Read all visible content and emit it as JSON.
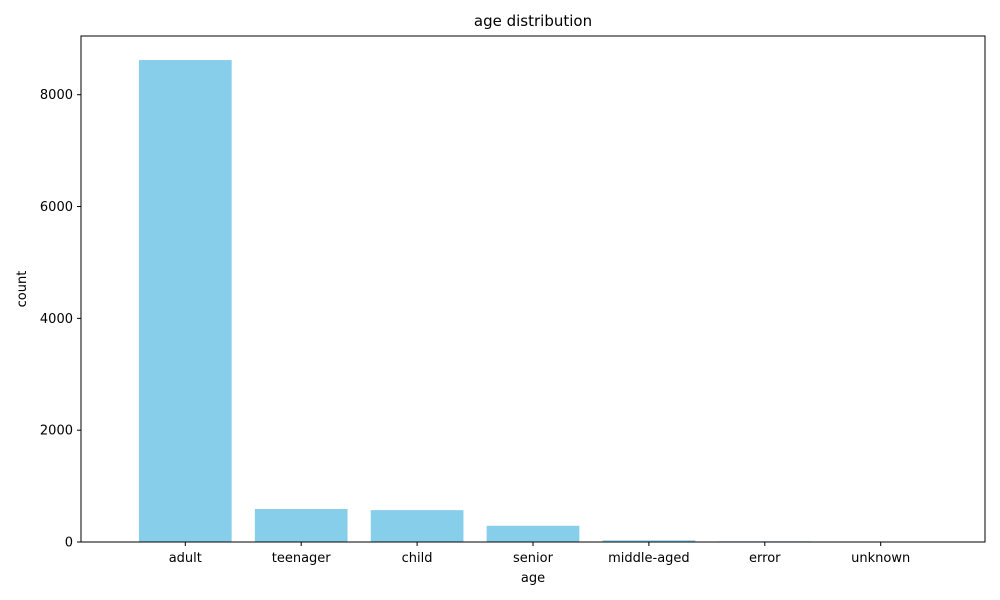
{
  "chart_data": {
    "type": "bar",
    "title": "age distribution",
    "xlabel": "age",
    "ylabel": "count",
    "categories": [
      "adult",
      "teenager",
      "child",
      "senior",
      "middle-aged",
      "error",
      "unknown"
    ],
    "values": [
      8620,
      590,
      570,
      290,
      30,
      12,
      2
    ],
    "ylim": [
      0,
      9050
    ],
    "yticks": [
      0,
      2000,
      4000,
      6000,
      8000
    ],
    "yticks_labels": [
      "0",
      "2000",
      "4000",
      "6000",
      "8000"
    ],
    "bar_color": "#87CEEB",
    "grid": false,
    "legend": "none"
  }
}
